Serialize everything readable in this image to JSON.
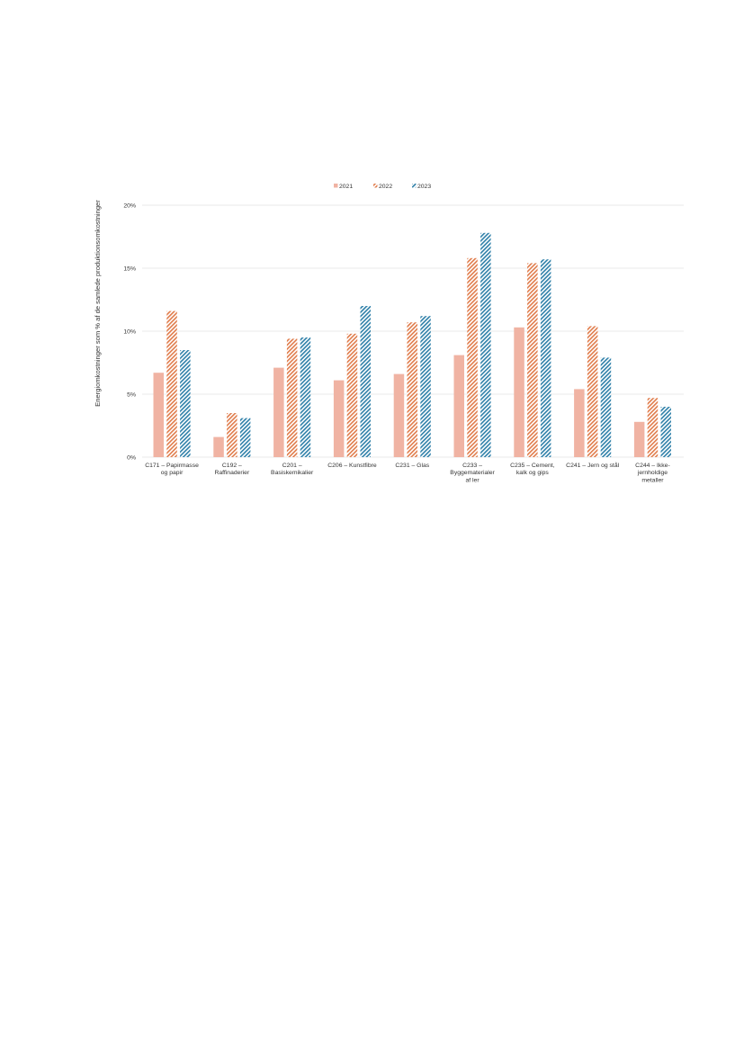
{
  "chart_data": {
    "type": "bar",
    "title": "",
    "xlabel": "",
    "ylabel": "Energiomkostninger som % af de samlede produktionsomkostninger",
    "ylim": [
      0,
      20
    ],
    "y_ticks": [
      0,
      5,
      10,
      15,
      20
    ],
    "y_tick_labels": [
      "0%",
      "5%",
      "10%",
      "15%",
      "20%"
    ],
    "grid": true,
    "legend_position": "top-center",
    "categories": [
      [
        "C171 – Papirmasse",
        "og papir"
      ],
      [
        "C192 –",
        "Raffinaderier"
      ],
      [
        "C201 –",
        "Basiskemikalier"
      ],
      [
        "C206 – Kunstfibre"
      ],
      [
        "C231 – Glas"
      ],
      [
        "C233 –",
        "Byggematerialer",
        "af ler"
      ],
      [
        "C235 – Cement,",
        "kalk og gips"
      ],
      [
        "C241 – Jern og stål"
      ],
      [
        "C244 – Ikke-",
        "jernholdige",
        "metaller"
      ]
    ],
    "series": [
      {
        "name": "2021",
        "color": "#f0b3a3",
        "pattern": "solid",
        "values": [
          6.7,
          1.6,
          7.1,
          6.1,
          6.6,
          8.1,
          10.3,
          5.4,
          2.8
        ]
      },
      {
        "name": "2022",
        "color": "#e07b4a",
        "pattern": "hatched",
        "values": [
          11.6,
          3.5,
          9.4,
          9.8,
          10.7,
          15.8,
          15.4,
          10.4,
          4.7
        ]
      },
      {
        "name": "2023",
        "color": "#2e7fa8",
        "pattern": "hatched",
        "values": [
          8.5,
          3.1,
          9.5,
          12.0,
          11.2,
          17.8,
          15.7,
          7.9,
          4.0
        ]
      }
    ]
  }
}
